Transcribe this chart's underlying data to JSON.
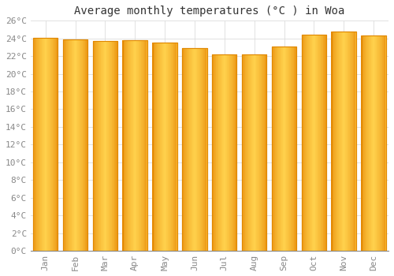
{
  "title": "Average monthly temperatures (°C ) in Woa",
  "months": [
    "Jan",
    "Feb",
    "Mar",
    "Apr",
    "May",
    "Jun",
    "Jul",
    "Aug",
    "Sep",
    "Oct",
    "Nov",
    "Dec"
  ],
  "values": [
    24.1,
    23.9,
    23.7,
    23.8,
    23.5,
    22.9,
    22.2,
    22.2,
    23.1,
    24.4,
    24.8,
    24.3
  ],
  "bar_color_main": "#FFBB33",
  "bar_color_edge": "#E08800",
  "bar_color_light": "#FFD97A",
  "background_color": "#FFFFFF",
  "grid_color": "#DDDDDD",
  "ylim": [
    0,
    26
  ],
  "yticks": [
    0,
    2,
    4,
    6,
    8,
    10,
    12,
    14,
    16,
    18,
    20,
    22,
    24,
    26
  ],
  "ytick_labels": [
    "0°C",
    "2°C",
    "4°C",
    "6°C",
    "8°C",
    "10°C",
    "12°C",
    "14°C",
    "16°C",
    "18°C",
    "20°C",
    "22°C",
    "24°C",
    "26°C"
  ],
  "title_fontsize": 10,
  "tick_fontsize": 8,
  "font_family": "monospace",
  "bar_width": 0.82
}
